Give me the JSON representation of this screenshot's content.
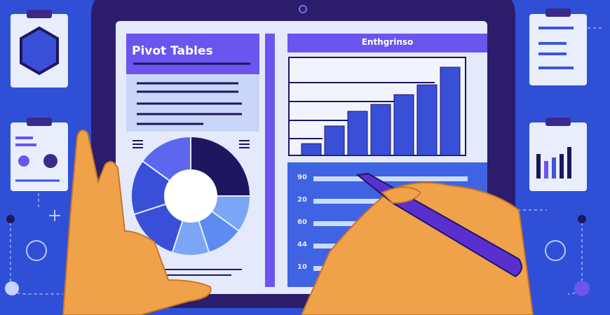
{
  "left_panel": {
    "title": "Pivot Tables"
  },
  "right_panel": {
    "title": "Enthgrinso"
  },
  "row_labels": [
    "90",
    "20",
    "60",
    "44",
    "10"
  ],
  "bar_levels": [
    0.12,
    0.3,
    0.45,
    0.52,
    0.62,
    0.72,
    0.9
  ],
  "pie_segments": [
    0.25,
    0.1,
    0.1,
    0.1,
    0.15,
    0.15,
    0.15
  ],
  "colors": {
    "background": "#2f4fd6",
    "frame": "#2b1d6b",
    "screen": "#e4eafb",
    "accent": "#6b55ee",
    "bar": "#3a4fd8",
    "hand": "#f0a24a",
    "pen": "#5a2fd0"
  }
}
